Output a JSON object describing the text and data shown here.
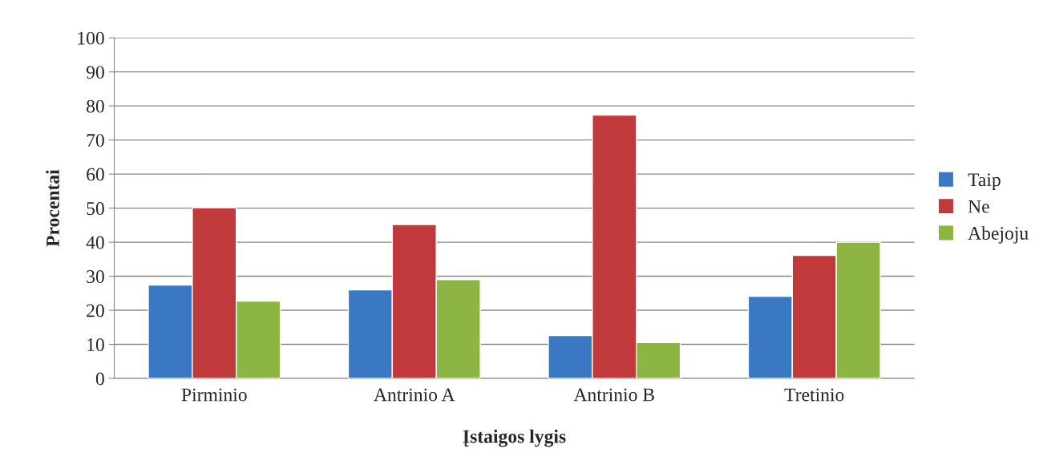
{
  "chart_data": {
    "type": "bar",
    "xlabel": "Įstaigos lygis",
    "ylabel": "Procentai",
    "categories": [
      "Pirminio",
      "Antrinio A",
      "Antrinio B",
      "Tretinio"
    ],
    "series": [
      {
        "name": "Taip",
        "color": "#3a78c4",
        "values": [
          27.4,
          26,
          12.6,
          24.1
        ]
      },
      {
        "name": "Ne",
        "color": "#c0393b",
        "values": [
          50.1,
          45.2,
          77.3,
          36.1
        ]
      },
      {
        "name": "Abejoju",
        "color": "#8db543",
        "values": [
          22.7,
          29,
          10.5,
          40
        ]
      }
    ],
    "ylim": [
      0,
      100
    ],
    "yticks": [
      0,
      10,
      20,
      30,
      40,
      50,
      60,
      70,
      80,
      90,
      100
    ],
    "grid": "y",
    "legend": "right"
  }
}
